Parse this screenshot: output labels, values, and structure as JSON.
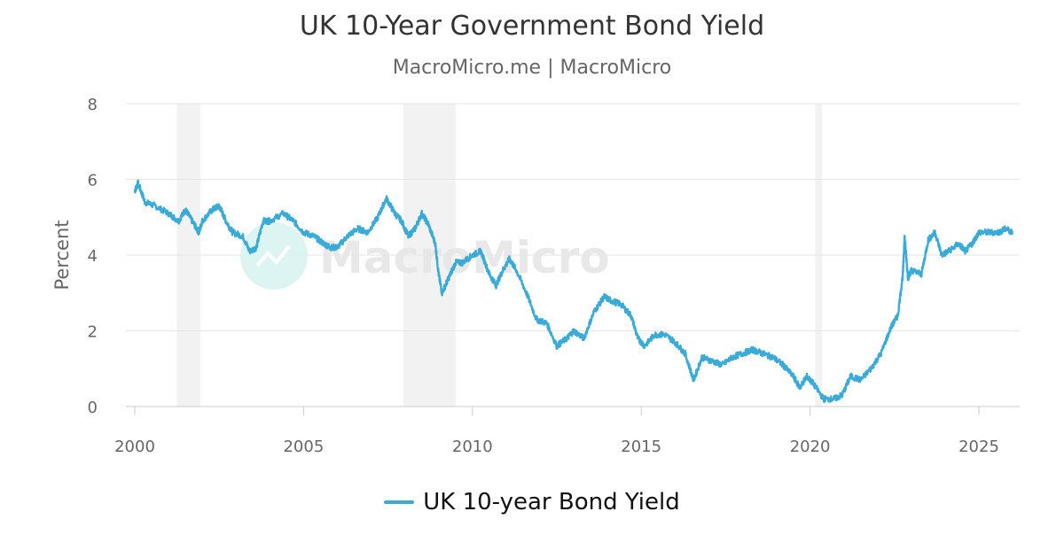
{
  "chart_data": {
    "type": "line",
    "title": "UK 10-Year Government Bond Yield",
    "subtitle": "MacroMicro.me | MacroMicro",
    "xlabel": "",
    "ylabel": "Percent",
    "xlim": [
      2000,
      2026.1
    ],
    "ylim": [
      0,
      8
    ],
    "x_ticks": [
      2000,
      2005,
      2010,
      2015,
      2020,
      2025
    ],
    "y_ticks": [
      0,
      2,
      4,
      6,
      8
    ],
    "grid": "horizontal",
    "legend_position": "bottom-center",
    "shaded_periods": [
      [
        2001.25,
        2001.95
      ],
      [
        2007.95,
        2009.5
      ],
      [
        2020.15,
        2020.35
      ]
    ],
    "watermark": "MacroMicro",
    "series": [
      {
        "name": "UK 10-year Bond Yield",
        "color": "#3aaad6",
        "points": [
          [
            2000.0,
            5.7
          ],
          [
            2000.1,
            5.9
          ],
          [
            2000.3,
            5.4
          ],
          [
            2000.6,
            5.3
          ],
          [
            2001.0,
            5.1
          ],
          [
            2001.3,
            4.9
          ],
          [
            2001.5,
            5.2
          ],
          [
            2001.7,
            4.9
          ],
          [
            2001.9,
            4.6
          ],
          [
            2002.0,
            4.9
          ],
          [
            2002.3,
            5.2
          ],
          [
            2002.5,
            5.3
          ],
          [
            2002.7,
            4.9
          ],
          [
            2002.9,
            4.6
          ],
          [
            2003.2,
            4.5
          ],
          [
            2003.4,
            4.1
          ],
          [
            2003.6,
            4.2
          ],
          [
            2003.8,
            4.9
          ],
          [
            2004.0,
            4.9
          ],
          [
            2004.4,
            5.1
          ],
          [
            2004.7,
            4.9
          ],
          [
            2005.0,
            4.6
          ],
          [
            2005.3,
            4.5
          ],
          [
            2005.6,
            4.3
          ],
          [
            2005.8,
            4.2
          ],
          [
            2006.0,
            4.2
          ],
          [
            2006.3,
            4.5
          ],
          [
            2006.6,
            4.7
          ],
          [
            2006.9,
            4.6
          ],
          [
            2007.2,
            5.0
          ],
          [
            2007.45,
            5.5
          ],
          [
            2007.7,
            5.1
          ],
          [
            2007.9,
            4.9
          ],
          [
            2008.1,
            4.5
          ],
          [
            2008.3,
            4.7
          ],
          [
            2008.5,
            5.1
          ],
          [
            2008.7,
            4.8
          ],
          [
            2008.9,
            4.3
          ],
          [
            2009.0,
            3.5
          ],
          [
            2009.1,
            3.0
          ],
          [
            2009.3,
            3.4
          ],
          [
            2009.5,
            3.8
          ],
          [
            2009.7,
            3.8
          ],
          [
            2010.0,
            4.0
          ],
          [
            2010.25,
            4.1
          ],
          [
            2010.5,
            3.5
          ],
          [
            2010.7,
            3.2
          ],
          [
            2010.9,
            3.6
          ],
          [
            2011.1,
            3.9
          ],
          [
            2011.3,
            3.6
          ],
          [
            2011.6,
            3.0
          ],
          [
            2011.9,
            2.3
          ],
          [
            2012.2,
            2.2
          ],
          [
            2012.5,
            1.6
          ],
          [
            2012.8,
            1.8
          ],
          [
            2013.0,
            2.0
          ],
          [
            2013.3,
            1.8
          ],
          [
            2013.6,
            2.5
          ],
          [
            2013.9,
            2.9
          ],
          [
            2014.1,
            2.8
          ],
          [
            2014.4,
            2.7
          ],
          [
            2014.7,
            2.4
          ],
          [
            2014.9,
            1.8
          ],
          [
            2015.1,
            1.6
          ],
          [
            2015.4,
            1.9
          ],
          [
            2015.7,
            1.9
          ],
          [
            2016.0,
            1.7
          ],
          [
            2016.3,
            1.4
          ],
          [
            2016.55,
            0.7
          ],
          [
            2016.8,
            1.3
          ],
          [
            2017.1,
            1.2
          ],
          [
            2017.4,
            1.1
          ],
          [
            2017.7,
            1.3
          ],
          [
            2018.0,
            1.4
          ],
          [
            2018.3,
            1.5
          ],
          [
            2018.6,
            1.4
          ],
          [
            2018.9,
            1.3
          ],
          [
            2019.2,
            1.1
          ],
          [
            2019.5,
            0.8
          ],
          [
            2019.7,
            0.5
          ],
          [
            2019.9,
            0.8
          ],
          [
            2020.1,
            0.6
          ],
          [
            2020.4,
            0.2
          ],
          [
            2020.7,
            0.2
          ],
          [
            2020.95,
            0.3
          ],
          [
            2021.2,
            0.8
          ],
          [
            2021.5,
            0.7
          ],
          [
            2021.8,
            1.0
          ],
          [
            2022.1,
            1.4
          ],
          [
            2022.4,
            2.1
          ],
          [
            2022.6,
            2.4
          ],
          [
            2022.75,
            3.5
          ],
          [
            2022.8,
            4.5
          ],
          [
            2022.9,
            3.4
          ],
          [
            2023.0,
            3.6
          ],
          [
            2023.3,
            3.5
          ],
          [
            2023.5,
            4.4
          ],
          [
            2023.7,
            4.6
          ],
          [
            2023.9,
            4.0
          ],
          [
            2024.1,
            4.1
          ],
          [
            2024.4,
            4.3
          ],
          [
            2024.6,
            4.1
          ],
          [
            2024.8,
            4.3
          ],
          [
            2025.0,
            4.6
          ],
          [
            2025.3,
            4.6
          ],
          [
            2025.6,
            4.6
          ],
          [
            2025.8,
            4.7
          ],
          [
            2026.0,
            4.6
          ]
        ]
      }
    ]
  }
}
